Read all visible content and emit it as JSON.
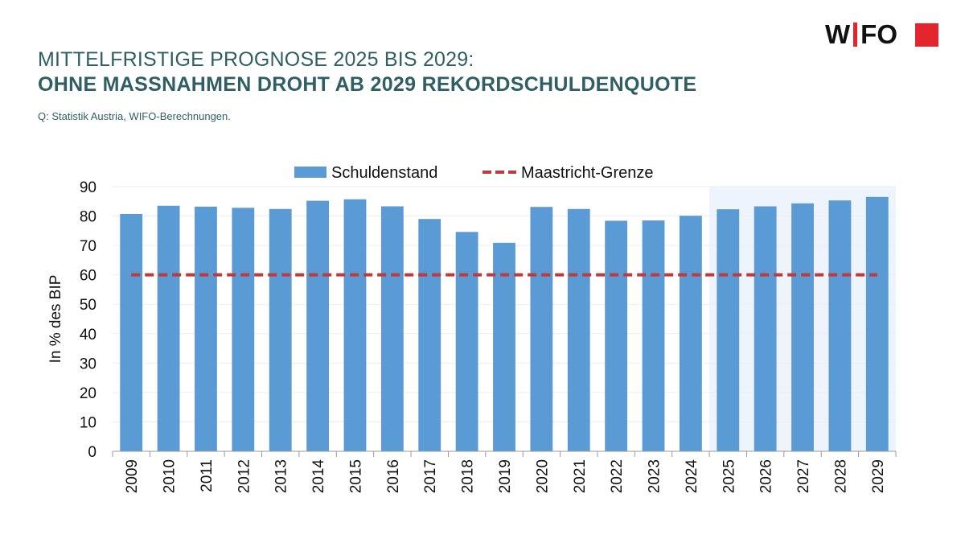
{
  "header": {
    "title_line1": "MITTELFRISTIGE PROGNOSE 2025 BIS 2029:",
    "title_line2": "OHNE MASSNAHMEN DROHT AB 2029 REKORDSCHULDENQUOTE",
    "source": "Q: Statistik Austria, WIFO-Berechnungen."
  },
  "logo": {
    "text_left": "W",
    "text_right": "FO",
    "accent_color": "#e3262d"
  },
  "chart_data": {
    "type": "bar",
    "title": "",
    "xlabel": "",
    "ylabel": "In % des BIP",
    "ylim": [
      0,
      90
    ],
    "yticks": [
      0,
      10,
      20,
      30,
      40,
      50,
      60,
      70,
      80,
      90
    ],
    "grid": true,
    "legend_position": "top-center",
    "categories": [
      "2009",
      "2010",
      "2011",
      "2012",
      "2013",
      "2014",
      "2015",
      "2016",
      "2017",
      "2018",
      "2019",
      "2020",
      "2021",
      "2022",
      "2023",
      "2024",
      "2025",
      "2026",
      "2027",
      "2028",
      "2029"
    ],
    "series": [
      {
        "name": "Schuldenstand",
        "kind": "bar",
        "color": "#5b9bd5",
        "values": [
          80.7,
          83.5,
          83.2,
          82.8,
          82.4,
          85.2,
          85.7,
          83.3,
          79.0,
          74.6,
          70.9,
          83.1,
          82.4,
          78.4,
          78.5,
          80.1,
          82.3,
          83.3,
          84.3,
          85.3,
          86.5
        ]
      },
      {
        "name": "Maastricht-Grenze",
        "kind": "line",
        "style": "dashed",
        "color": "#c0393b",
        "values": [
          60,
          60,
          60,
          60,
          60,
          60,
          60,
          60,
          60,
          60,
          60,
          60,
          60,
          60,
          60,
          60,
          60,
          60,
          60,
          60,
          60
        ]
      }
    ],
    "forecast_shade": {
      "from": "2025",
      "to": "2029",
      "color": "#eef4fb"
    }
  }
}
